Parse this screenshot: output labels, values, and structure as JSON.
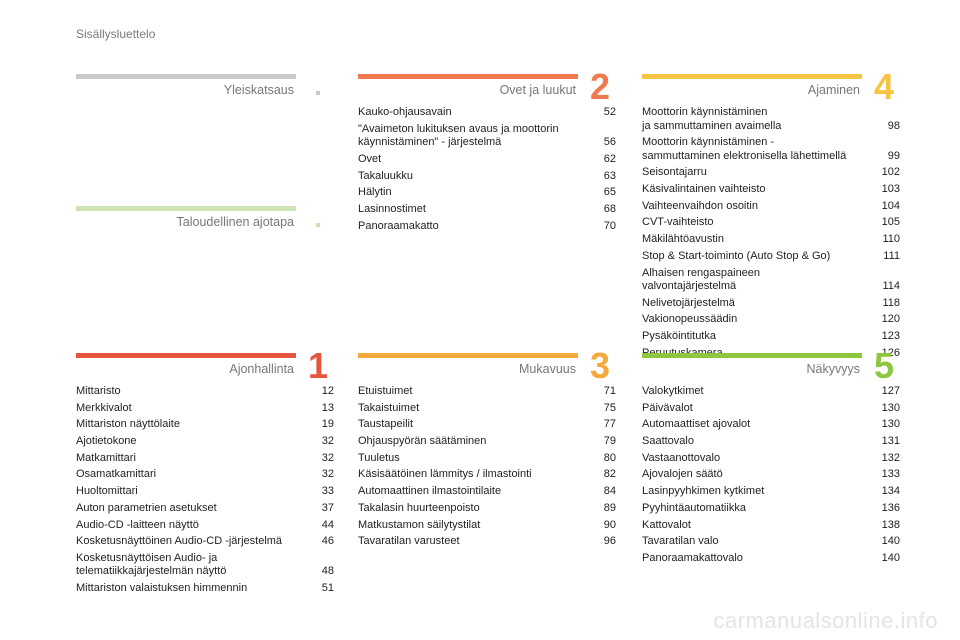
{
  "header": {
    "title": "Sisällysluettelo"
  },
  "sections": {
    "yleiskatsaus": {
      "title": "Yleiskatsaus",
      "color": "#c9c9c9"
    },
    "taloudellinen": {
      "title": "Taloudellinen ajotapa",
      "color": "#cfe4b5"
    },
    "ovet": {
      "title": "Ovet ja luukut",
      "number": "2",
      "color": "#f07a4e",
      "items": [
        {
          "text": "Kauko-ohjausavain",
          "page": "52"
        },
        {
          "text": "\"Avaimeton lukituksen avaus ja moottorin\nkäynnistäminen\" - järjestelmä",
          "page": "56"
        },
        {
          "text": "Ovet",
          "page": "62"
        },
        {
          "text": "Takaluukku",
          "page": "63"
        },
        {
          "text": "Hälytin",
          "page": "65"
        },
        {
          "text": "Lasinnostimet",
          "page": "68"
        },
        {
          "text": "Panoraamakatto",
          "page": "70"
        }
      ]
    },
    "ajaminen": {
      "title": "Ajaminen",
      "number": "4",
      "color": "#f6c343",
      "items": [
        {
          "text": "Moottorin käynnistäminen\nja sammuttaminen avaimella",
          "page": "98"
        },
        {
          "text": "Moottorin käynnistäminen -\nsammuttaminen elektronisella lähettimellä",
          "page": "99"
        },
        {
          "text": "Seisontajarru",
          "page": "102"
        },
        {
          "text": "Käsivalintainen vaihteisto",
          "page": "103"
        },
        {
          "text": "Vaihteenvaihdon osoitin",
          "page": "104"
        },
        {
          "text": "CVT-vaihteisto",
          "page": "105"
        },
        {
          "text": "Mäkilähtöavustin",
          "page": "110"
        },
        {
          "text": "Stop & Start-toiminto (Auto Stop & Go)",
          "page": "111"
        },
        {
          "text": "Alhaisen rengaspaineen\nvalvontajärjestelmä",
          "page": "114"
        },
        {
          "text": "Nelivetojärjestelmä",
          "page": "118"
        },
        {
          "text": "Vakionopeussäädin",
          "page": "120"
        },
        {
          "text": "Pysäköintitutka",
          "page": "123"
        },
        {
          "text": "Peruutuskamera",
          "page": "126"
        }
      ]
    },
    "ajonhallinta": {
      "title": "Ajonhallinta",
      "number": "1",
      "color": "#e8553e",
      "items": [
        {
          "text": "Mittaristo",
          "page": "12"
        },
        {
          "text": "Merkkivalot",
          "page": "13"
        },
        {
          "text": "Mittariston näyttölaite",
          "page": "19"
        },
        {
          "text": "Ajotietokone",
          "page": "32"
        },
        {
          "text": "Matkamittari",
          "page": "32"
        },
        {
          "text": "Osamatkamittari",
          "page": "32"
        },
        {
          "text": "Huoltomittari",
          "page": "33"
        },
        {
          "text": "Auton parametrien asetukset",
          "page": "37"
        },
        {
          "text": "Audio-CD -laitteen näyttö",
          "page": "44"
        },
        {
          "text": "Kosketusnäyttöinen Audio-CD -järjestelmä",
          "page": "46"
        },
        {
          "text": "Kosketusnäyttöisen Audio- ja\ntelematiikkajärjestelmän näyttö",
          "page": "48"
        },
        {
          "text": "Mittariston valaistuksen himmennin",
          "page": "51"
        }
      ]
    },
    "mukavuus": {
      "title": "Mukavuus",
      "number": "3",
      "color": "#f5a93a",
      "items": [
        {
          "text": "Etuistuimet",
          "page": "71"
        },
        {
          "text": "Takaistuimet",
          "page": "75"
        },
        {
          "text": "Taustapeilit",
          "page": "77"
        },
        {
          "text": "Ohjauspyörän säätäminen",
          "page": "79"
        },
        {
          "text": "Tuuletus",
          "page": "80"
        },
        {
          "text": "Käsisäätöinen lämmitys / ilmastointi",
          "page": "82"
        },
        {
          "text": "Automaattinen ilmastointilaite",
          "page": "84"
        },
        {
          "text": "Takalasin huurteenpoisto",
          "page": "89"
        },
        {
          "text": "Matkustamon säilytystilat",
          "page": "90"
        },
        {
          "text": "Tavaratilan varusteet",
          "page": "96"
        }
      ]
    },
    "nakyvyys": {
      "title": "Näkyvyys",
      "number": "5",
      "color": "#8dc63f",
      "items": [
        {
          "text": "Valokytkimet",
          "page": "127"
        },
        {
          "text": "Päivävalot",
          "page": "130"
        },
        {
          "text": "Automaattiset ajovalot",
          "page": "130"
        },
        {
          "text": "Saattovalo",
          "page": "131"
        },
        {
          "text": "Vastaanottovalo",
          "page": "132"
        },
        {
          "text": "Ajovalojen säätö",
          "page": "133"
        },
        {
          "text": "Lasinpyyhkimen kytkimet",
          "page": "134"
        },
        {
          "text": "Pyyhintäautomatiikka",
          "page": "136"
        },
        {
          "text": "Kattovalot",
          "page": "138"
        },
        {
          "text": "Tavaratilan valo",
          "page": "140"
        },
        {
          "text": "Panoraamakattovalo",
          "page": "140"
        }
      ]
    }
  },
  "watermark": "carmanualsonline.info"
}
